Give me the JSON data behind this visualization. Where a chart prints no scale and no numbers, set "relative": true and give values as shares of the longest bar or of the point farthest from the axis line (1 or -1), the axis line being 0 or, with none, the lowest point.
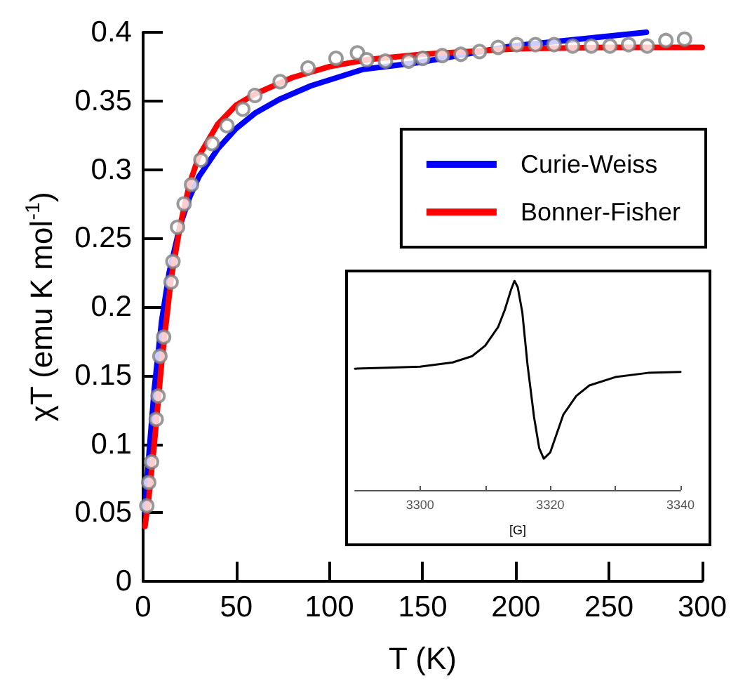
{
  "chart_data": [
    {
      "type": "scatter",
      "xlabel": "T (K)",
      "ylabel": "χT (emu K mol$^{-1}$)",
      "xlim": [
        0,
        300
      ],
      "xticks": [
        0,
        50,
        100,
        150,
        200,
        250,
        300
      ],
      "ylim": [
        0,
        0.4
      ],
      "yticks": [
        0,
        0.05,
        0.1,
        0.15,
        0.2,
        0.25,
        0.3,
        0.35,
        0.4
      ],
      "grid": false,
      "legend": "top right",
      "series": [
        {
          "marker": "circle",
          "color": "#808080",
          "x": [
            2,
            3,
            4.5,
            7,
            8,
            9,
            11,
            15,
            16,
            18.5,
            22,
            26,
            31,
            37,
            45,
            53.5,
            60,
            73.5,
            88.5,
            103.5,
            115,
            120,
            130,
            142.5,
            150,
            160.5,
            170.5,
            180.5,
            190.5,
            200.5,
            210.5,
            220.5,
            230.5,
            240.5,
            250.5,
            260.5,
            270.5,
            280.5,
            290.5
          ],
          "values": [
            0.055,
            0.072,
            0.087,
            0.118,
            0.135,
            0.164,
            0.178,
            0.218,
            0.233,
            0.258,
            0.275,
            0.289,
            0.307,
            0.319,
            0.332,
            0.344,
            0.354,
            0.364,
            0.374,
            0.381,
            0.385,
            0.38,
            0.379,
            0.379,
            0.381,
            0.383,
            0.384,
            0.386,
            0.389,
            0.391,
            0.391,
            0.391,
            0.39,
            0.39,
            0.39,
            0.391,
            0.39,
            0.394,
            0.395
          ]
        },
        {
          "type": "line",
          "name": "Curie-Weiss",
          "color": "#0000ff",
          "x": [
            1,
            3,
            6,
            10,
            14,
            20,
            25,
            30,
            40,
            50,
            60,
            73,
            90,
            118,
            148,
            198,
            270
          ],
          "values": [
            0.05,
            0.09,
            0.14,
            0.19,
            0.225,
            0.26,
            0.28,
            0.295,
            0.315,
            0.33,
            0.341,
            0.351,
            0.361,
            0.373,
            0.378,
            0.39,
            0.4
          ]
        },
        {
          "type": "line",
          "name": "Bonner-Fisher",
          "color": "#ff0000",
          "x": [
            1,
            3,
            6,
            10,
            15,
            20,
            25,
            30,
            40,
            50,
            60,
            80,
            100,
            120,
            150,
            200,
            250,
            300
          ],
          "values": [
            0.04,
            0.06,
            0.1,
            0.16,
            0.22,
            0.26,
            0.29,
            0.31,
            0.333,
            0.347,
            0.355,
            0.367,
            0.375,
            0.38,
            0.384,
            0.388,
            0.389,
            0.389
          ]
        }
      ]
    },
    {
      "type": "line",
      "relative": true,
      "xlabel": "[G]",
      "xlim": [
        3290,
        3340
      ],
      "xticks": [
        3300,
        {
          "value": 3310,
          "label": null
        },
        3320,
        {
          "value": 3330,
          "label": null
        },
        3340
      ],
      "tick_labels": "x",
      "series": [
        {
          "color": "#000000",
          "x": [
            3290,
            3295,
            3300,
            3305,
            3308,
            3310,
            3312,
            3313,
            3314,
            3314.5,
            3315,
            3315.7,
            3316.5,
            3317.5,
            3318.3,
            3319,
            3320,
            3321,
            3322,
            3324,
            3326,
            3330,
            3335,
            3340
          ],
          "values": [
            0.58,
            0.585,
            0.59,
            0.61,
            0.64,
            0.69,
            0.78,
            0.86,
            0.96,
            1,
            0.97,
            0.85,
            0.6,
            0.35,
            0.2,
            0.15,
            0.18,
            0.27,
            0.36,
            0.45,
            0.5,
            0.54,
            0.56,
            0.565
          ]
        }
      ]
    }
  ]
}
